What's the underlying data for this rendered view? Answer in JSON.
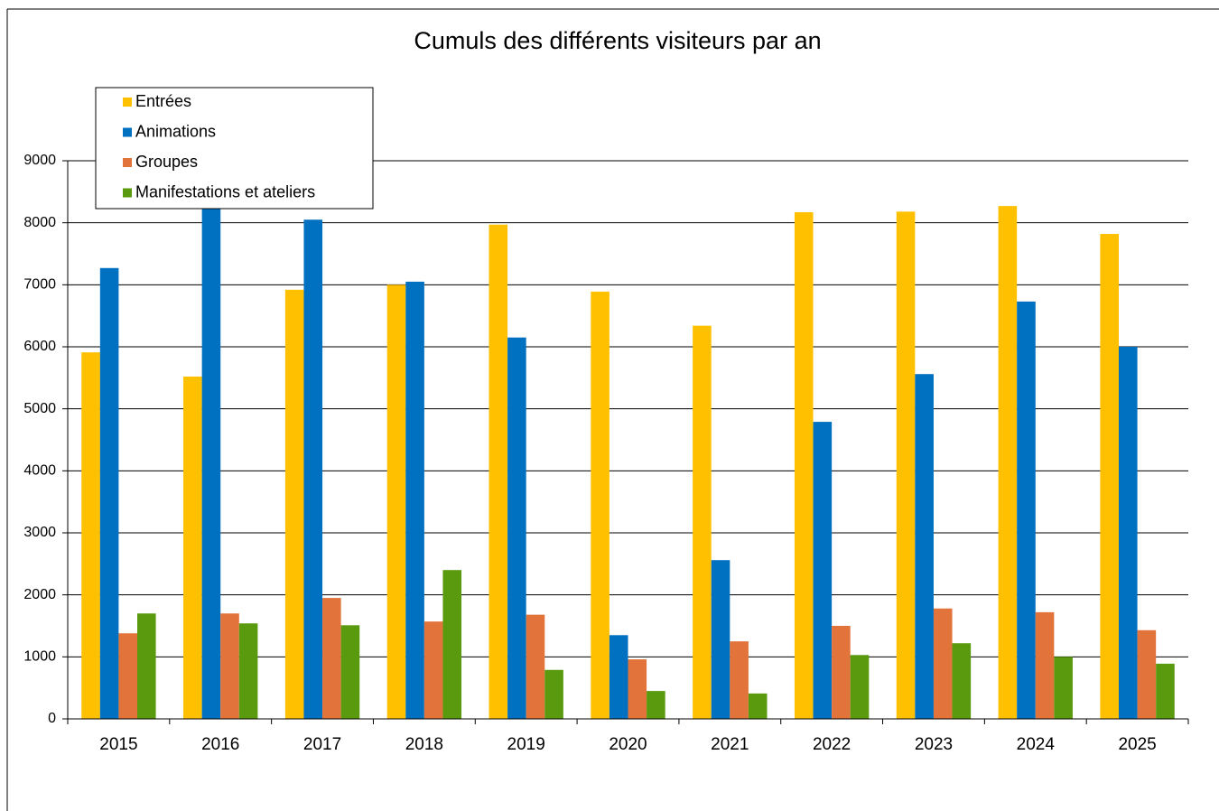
{
  "chart_data": {
    "type": "bar",
    "title": "Cumuls des différents visiteurs par an",
    "categories": [
      "2015",
      "2016",
      "2017",
      "2018",
      "2019",
      "2020",
      "2021",
      "2022",
      "2023",
      "2024",
      "2025"
    ],
    "series": [
      {
        "name": "Entrées",
        "color": "#ffc000",
        "values": [
          5910,
          5520,
          6920,
          7000,
          7970,
          6890,
          6340,
          8170,
          8180,
          8270,
          7820
        ]
      },
      {
        "name": "Animations",
        "color": "#0070c0",
        "values": [
          7270,
          8300,
          8050,
          7050,
          6150,
          1350,
          2560,
          4790,
          5560,
          6730,
          6000
        ]
      },
      {
        "name": "Groupes",
        "color": "#e2733a",
        "values": [
          1380,
          1700,
          1950,
          1570,
          1680,
          960,
          1250,
          1500,
          1780,
          1720,
          1430
        ]
      },
      {
        "name": "Manifestations et ateliers",
        "color": "#5a9a0e",
        "values": [
          1700,
          1540,
          1510,
          2400,
          790,
          450,
          410,
          1030,
          1220,
          1000,
          890
        ]
      }
    ],
    "ylim": [
      0,
      9000
    ],
    "yticks": [
      0,
      1000,
      2000,
      3000,
      4000,
      5000,
      6000,
      7000,
      8000,
      9000
    ],
    "grid": true,
    "legend": "top-left"
  }
}
